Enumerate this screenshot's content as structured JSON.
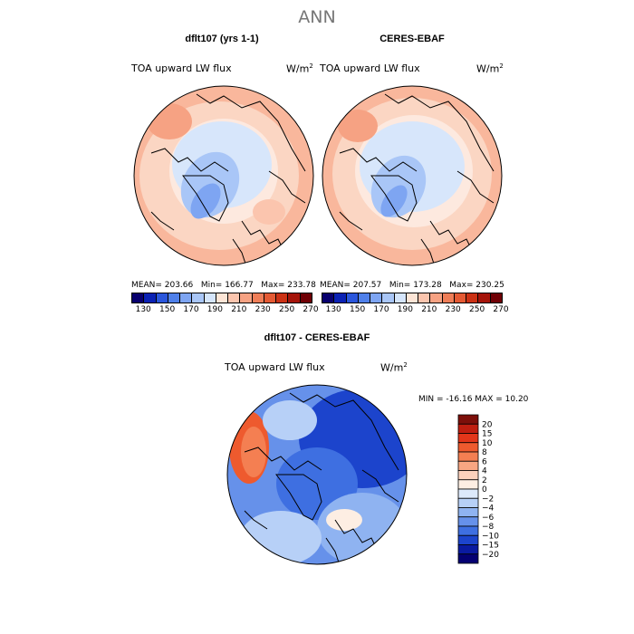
{
  "figure": {
    "title": "ANN"
  },
  "panels": {
    "model": {
      "title": "dflt107 (yrs 1-1)",
      "variable": "TOA upward LW flux",
      "units_text": "W/m",
      "units_exp": "2",
      "mean_label": "MEAN= 203.66",
      "min_label": "Min= 166.77",
      "max_label": "Max= 233.78"
    },
    "obs": {
      "title": "CERES-EBAF",
      "variable": "TOA upward LW flux",
      "units_text": "W/m",
      "units_exp": "2",
      "mean_label": "MEAN= 207.57",
      "min_label": "Min= 173.28",
      "max_label": "Max= 230.25"
    },
    "diff": {
      "title": "dflt107 - CERES-EBAF",
      "variable": "TOA upward LW flux",
      "units_text": "W/m",
      "units_exp": "2",
      "minmax_label": "MIN = -16.16 MAX =  10.20"
    }
  },
  "chart_data": [
    {
      "type": "heatmap",
      "projection": "north polar stereographic",
      "title": "dflt107 (yrs 1-1)",
      "variable": "TOA upward LW flux",
      "units": "W/m^2",
      "mean": 203.66,
      "min": 166.77,
      "max": 233.78,
      "colorbar_levels": [
        130,
        140,
        150,
        160,
        170,
        180,
        190,
        200,
        210,
        220,
        230,
        240,
        250,
        260,
        270
      ],
      "colorbar_tick_labels": [
        "130",
        "150",
        "170",
        "190",
        "210",
        "230",
        "250",
        "270"
      ]
    },
    {
      "type": "heatmap",
      "projection": "north polar stereographic",
      "title": "CERES-EBAF",
      "variable": "TOA upward LW flux",
      "units": "W/m^2",
      "mean": 207.57,
      "min": 173.28,
      "max": 230.25,
      "colorbar_levels": [
        130,
        140,
        150,
        160,
        170,
        180,
        190,
        200,
        210,
        220,
        230,
        240,
        250,
        260,
        270
      ],
      "colorbar_tick_labels": [
        "130",
        "150",
        "170",
        "190",
        "210",
        "230",
        "250",
        "270"
      ]
    },
    {
      "type": "heatmap",
      "projection": "north polar stereographic",
      "title": "dflt107 - CERES-EBAF",
      "variable": "TOA upward LW flux",
      "units": "W/m^2",
      "min": -16.16,
      "max": 10.2,
      "colorbar_levels": [
        20,
        15,
        10,
        8,
        6,
        4,
        2,
        0,
        -2,
        -4,
        -6,
        -8,
        -10,
        -15,
        -20
      ],
      "colorbar_tick_labels": [
        "20",
        "15",
        "10",
        "8",
        "6",
        "4",
        "2",
        "0",
        "−2",
        "−4",
        "−6",
        "−8",
        "−10",
        "−15",
        "−20"
      ]
    }
  ],
  "colors": {
    "abs_scale": [
      "#08006e",
      "#0a22b4",
      "#2a56dc",
      "#4f80ea",
      "#7ea5f2",
      "#a9c6f7",
      "#d5e5fb",
      "#fde5d6",
      "#fbc5ae",
      "#f6a283",
      "#ef7e58",
      "#e45a34",
      "#cb3114",
      "#a5140a",
      "#6f0005"
    ],
    "diff_scale": [
      "#7d0f0a",
      "#bf1e10",
      "#e2361a",
      "#ee5a2e",
      "#f47f52",
      "#f8a682",
      "#fcd1bc",
      "#fdeee3",
      "#dde9fb",
      "#b7d0f7",
      "#8fb3f1",
      "#6691ea",
      "#3e6fe1",
      "#1c44cc",
      "#0a1aa0",
      "#040072"
    ]
  }
}
